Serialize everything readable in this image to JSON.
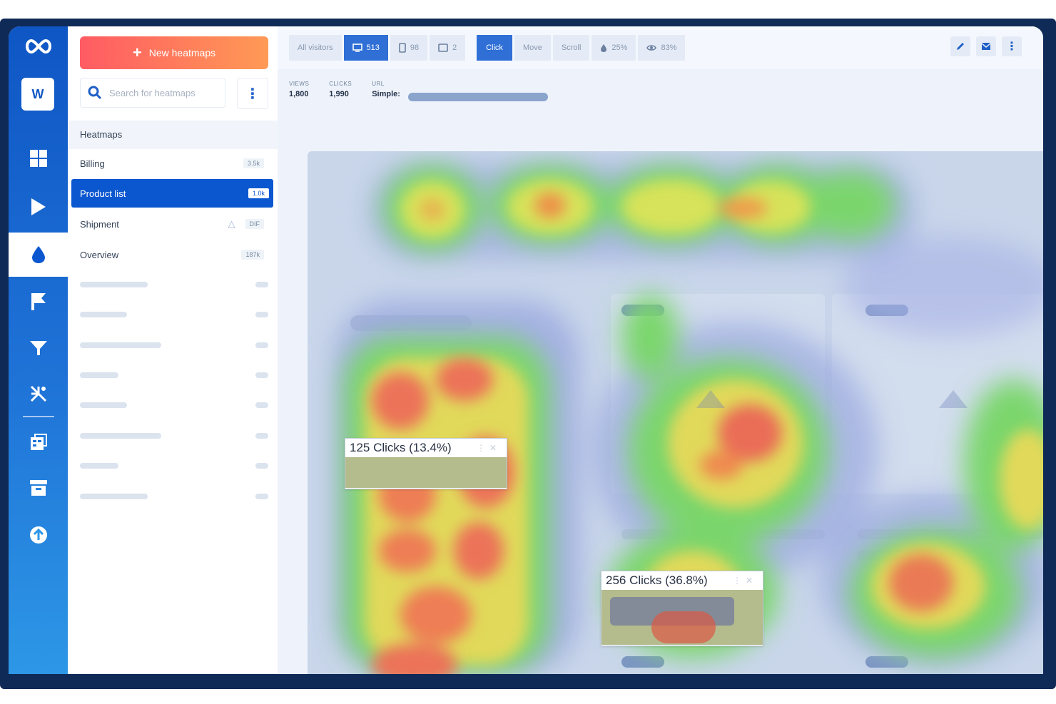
{
  "sidebar": {
    "new_button_label": "New heatmaps",
    "search_placeholder": "Search for heatmaps",
    "section_title": "Heatmaps",
    "items": [
      {
        "name": "Billing",
        "badge": "3.5k"
      },
      {
        "name": "Product list",
        "badge": "1.0k"
      },
      {
        "name": "Shipment",
        "badge": "DIF"
      },
      {
        "name": "Overview",
        "badge": "187k"
      }
    ]
  },
  "toolbar": {
    "all_visitors": "All visitors",
    "desktop_count": "513",
    "mobile_count": "98",
    "tablet_count": "2",
    "click": "Click",
    "move": "Move",
    "scroll": "Scroll",
    "drop_pct": "25%",
    "view_pct": "83%"
  },
  "stats": {
    "views_label": "VIEWS",
    "views_value": "1,800",
    "clicks_label": "CLICKS",
    "clicks_value": "1,990",
    "url_label": "URL",
    "url_value": "Simple:"
  },
  "tooltips": [
    {
      "text": "125 Clicks (13.4%)"
    },
    {
      "text": "256 Clicks (36.8%)"
    }
  ],
  "colors": {
    "rail": "#0f56c5",
    "accent": "#0b57d0",
    "new_button_start": "#ff5b63",
    "new_button_end": "#ff9a55"
  },
  "icons": {
    "logo": "infinity-icon",
    "rail": [
      "dashboard-icon",
      "play-icon",
      "heatmap-drop-icon",
      "flag-icon",
      "funnel-icon",
      "nodes-icon",
      "survey-icon",
      "archive-icon",
      "plus-circle-icon"
    ]
  }
}
